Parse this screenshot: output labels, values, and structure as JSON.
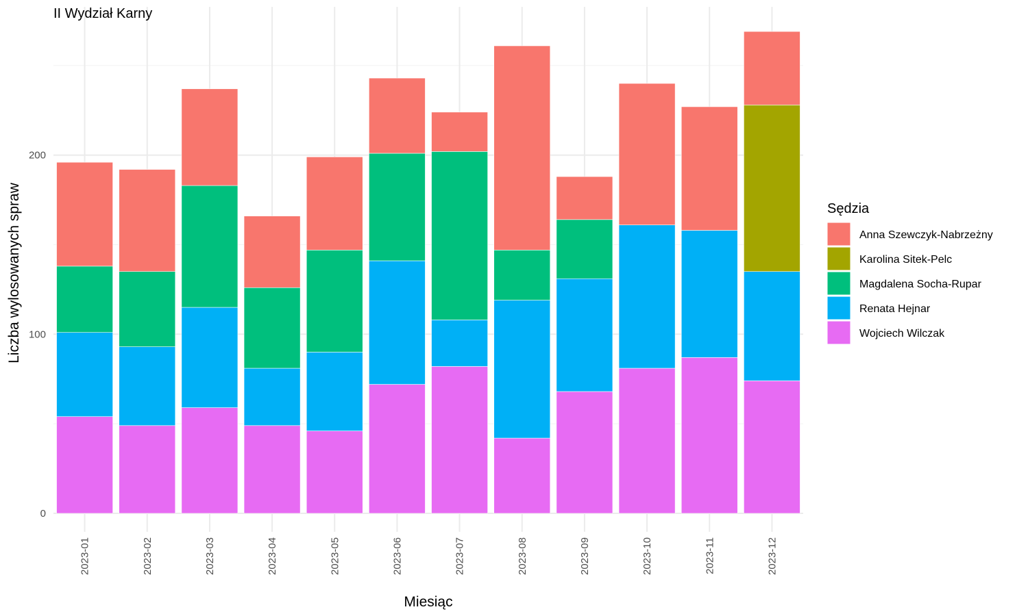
{
  "chart_data": {
    "type": "bar",
    "stacked": true,
    "title": "II Wydział Karny",
    "xlabel": "Miesiąc",
    "ylabel": "Liczba wylosowanych spraw",
    "ylim": [
      0,
      275
    ],
    "yticks": [
      0,
      100,
      200
    ],
    "grid": true,
    "legend_title": "Sędzia",
    "legend_position": "right",
    "categories": [
      "2023-01",
      "2023-02",
      "2023-03",
      "2023-04",
      "2023-05",
      "2023-06",
      "2023-07",
      "2023-08",
      "2023-09",
      "2023-10",
      "2023-11",
      "2023-12"
    ],
    "series": [
      {
        "name": "Wojciech Wilczak",
        "color": "#E76BF3",
        "values": [
          54,
          49,
          59,
          49,
          46,
          72,
          82,
          42,
          68,
          81,
          87,
          74
        ]
      },
      {
        "name": "Renata Hejnar",
        "color": "#00B0F6",
        "values": [
          47,
          44,
          56,
          32,
          44,
          69,
          26,
          77,
          63,
          80,
          71,
          61
        ]
      },
      {
        "name": "Magdalena Socha-Rupar",
        "color": "#00BF7D",
        "values": [
          37,
          42,
          68,
          45,
          57,
          60,
          94,
          28,
          33,
          0,
          0,
          0
        ]
      },
      {
        "name": "Karolina Sitek-Pelc",
        "color": "#A3A500",
        "values": [
          0,
          0,
          0,
          0,
          0,
          0,
          0,
          0,
          0,
          0,
          0,
          93
        ]
      },
      {
        "name": "Anna Szewczyk-Nabrzeżny",
        "color": "#F8766D",
        "values": [
          58,
          57,
          54,
          40,
          52,
          42,
          22,
          114,
          24,
          79,
          69,
          41
        ]
      }
    ],
    "legend_order": [
      "Anna Szewczyk-Nabrzeżny",
      "Karolina Sitek-Pelc",
      "Magdalena Socha-Rupar",
      "Renata Hejnar",
      "Wojciech Wilczak"
    ]
  }
}
